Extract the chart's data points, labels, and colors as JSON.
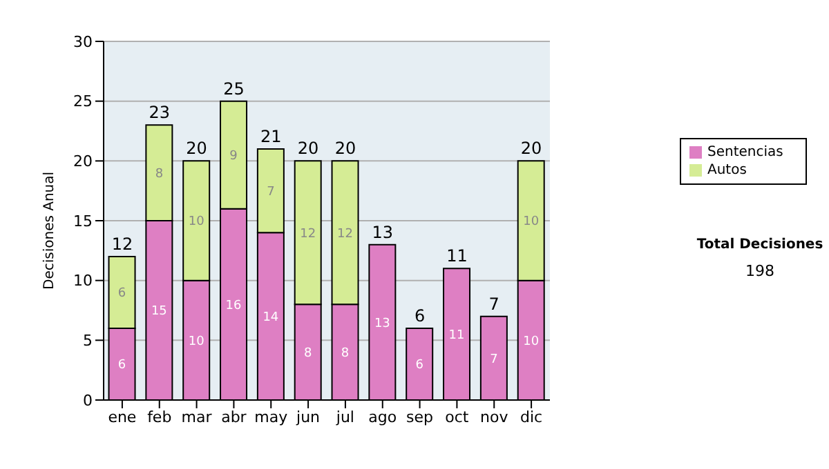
{
  "chart_data": {
    "type": "bar",
    "ylabel": "Decisiones Anual",
    "categories": [
      "ene",
      "feb",
      "mar",
      "abr",
      "may",
      "jun",
      "jul",
      "ago",
      "sep",
      "oct",
      "nov",
      "dic"
    ],
    "series": [
      {
        "name": "Sentencias",
        "color": "#de7fc3",
        "values": [
          6,
          15,
          10,
          16,
          14,
          8,
          8,
          13,
          6,
          11,
          7,
          10
        ]
      },
      {
        "name": "Autos",
        "color": "#d5ec95",
        "values": [
          6,
          8,
          10,
          9,
          7,
          12,
          12,
          null,
          null,
          null,
          null,
          10
        ]
      }
    ],
    "stacked": true,
    "ylim": [
      0,
      30
    ],
    "yticks": [
      0,
      5,
      10,
      15,
      20,
      25,
      30
    ],
    "grid": "y",
    "legend": "right",
    "data_labels": true,
    "totals": [
      "12",
      "23",
      "20",
      "25",
      "21",
      "20",
      "20",
      "13",
      "6",
      "11",
      "7",
      "20"
    ],
    "annotations": [
      "Total Decisiones",
      "198"
    ]
  }
}
